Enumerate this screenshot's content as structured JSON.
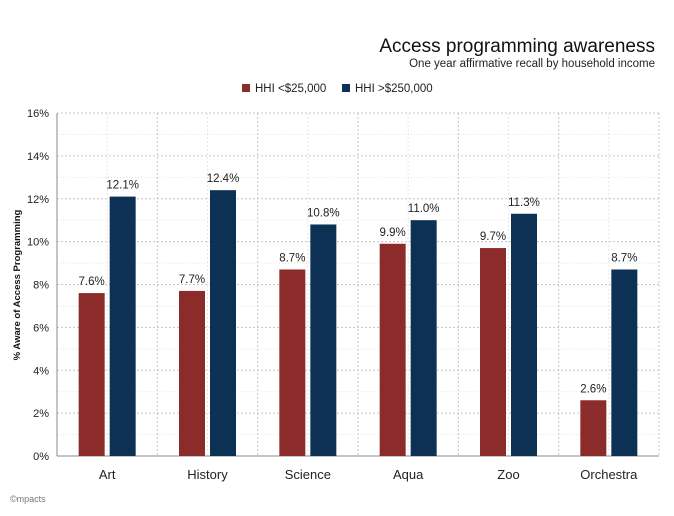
{
  "chart_data": {
    "type": "bar",
    "title": "Access programming awareness",
    "subtitle": "One year affirmative recall by household income",
    "xlabel": "",
    "ylabel": "% Aware of Access Programming",
    "ylim": [
      0,
      16
    ],
    "yticks": [
      "0%",
      "2%",
      "4%",
      "6%",
      "8%",
      "10%",
      "12%",
      "14%",
      "16%"
    ],
    "grid": true,
    "legend_position": "top",
    "categories": [
      "Art",
      "History",
      "Science",
      "Aqua",
      "Zoo",
      "Orchestra"
    ],
    "series": [
      {
        "name": "HHI <$25,000",
        "color": "#8b2c2a",
        "values": [
          7.6,
          7.7,
          8.7,
          9.9,
          9.7,
          2.6
        ],
        "labels": [
          "7.6%",
          "7.7%",
          "8.7%",
          "9.9%",
          "9.7%",
          "2.6%"
        ]
      },
      {
        "name": "HHI >$250,000",
        "color": "#0d3154",
        "values": [
          12.1,
          12.4,
          10.8,
          11.0,
          11.3,
          8.7
        ],
        "labels": [
          "12.1%",
          "12.4%",
          "10.8%",
          "11.0%",
          "11.3%",
          "8.7%"
        ]
      }
    ]
  },
  "footer": {
    "logo_text": "©mpacts"
  }
}
